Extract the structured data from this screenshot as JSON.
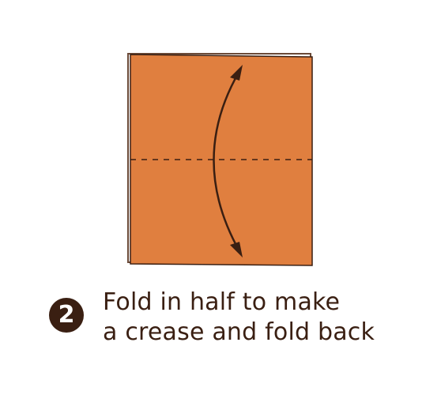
{
  "step": {
    "number": "2",
    "lines": [
      "Fold in half to make",
      "a crease and fold back"
    ]
  },
  "colors": {
    "paper": "#e07f3f",
    "outline": "#3a1f12",
    "back_layer": "#6b4a38",
    "text": "#3a1f12",
    "badge": "#3a1f12"
  }
}
